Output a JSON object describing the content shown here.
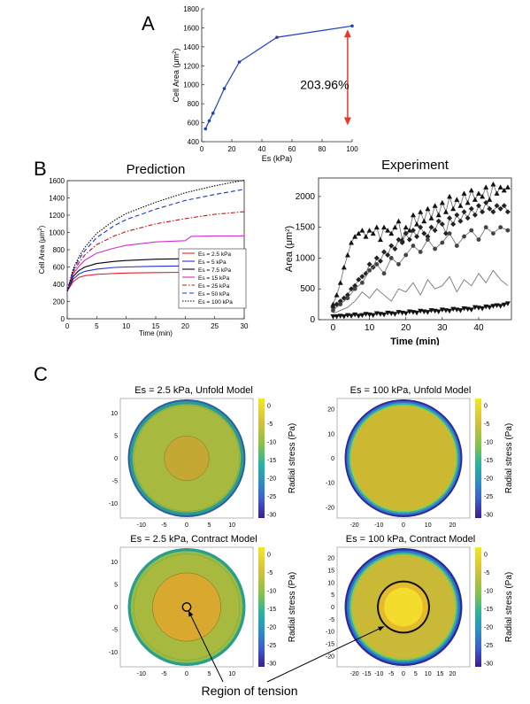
{
  "panels": {
    "a": "A",
    "b": "B",
    "c": "C"
  },
  "chart_data": [
    {
      "id": "A",
      "type": "line",
      "title": "",
      "xlabel": "Es (kPa)",
      "ylabel": "Cell Area (μm²)",
      "xlim": [
        0,
        100
      ],
      "ylim": [
        400,
        1800
      ],
      "xticks": [
        0,
        20,
        40,
        60,
        80,
        100
      ],
      "yticks": [
        400,
        600,
        800,
        1000,
        1200,
        1400,
        1600,
        1800
      ],
      "series": [
        {
          "color": "#1f3fbf",
          "x": [
            2.5,
            5,
            7.5,
            15,
            25,
            50,
            100
          ],
          "y": [
            535,
            620,
            700,
            960,
            1240,
            1500,
            1620
          ]
        }
      ],
      "annotation": {
        "text": "203.96%",
        "color": "#e8362c"
      }
    },
    {
      "id": "B-prediction",
      "type": "line",
      "title": "Prediction",
      "xlabel": "Time (min)",
      "ylabel": "Cell Area (μm²)",
      "xlim": [
        0,
        30
      ],
      "ylim": [
        0,
        1600
      ],
      "xticks": [
        0,
        5,
        10,
        15,
        20,
        25,
        30
      ],
      "yticks": [
        0,
        200,
        400,
        600,
        800,
        1000,
        1200,
        1400,
        1600
      ],
      "legend_position": "bottom-right",
      "series": [
        {
          "name": "Es = 2.5 kPa",
          "color": "#e0222a",
          "dash": "solid",
          "x": [
            0,
            1,
            2,
            3,
            5,
            8,
            10,
            15,
            20,
            25,
            30
          ],
          "y": [
            320,
            430,
            480,
            500,
            515,
            525,
            530,
            535,
            538,
            540,
            540
          ]
        },
        {
          "name": "Es = 5 kPa",
          "color": "#2233cc",
          "dash": "solid",
          "x": [
            0,
            1,
            2,
            3,
            5,
            8,
            10,
            15,
            20,
            25,
            30
          ],
          "y": [
            320,
            460,
            520,
            550,
            575,
            595,
            600,
            608,
            612,
            615,
            615
          ]
        },
        {
          "name": "Es = 7.5 kPa",
          "color": "#000000",
          "dash": "solid",
          "x": [
            0,
            1,
            2,
            3,
            5,
            8,
            10,
            15,
            20,
            25,
            30
          ],
          "y": [
            320,
            490,
            560,
            600,
            640,
            665,
            675,
            690,
            695,
            700,
            700
          ]
        },
        {
          "name": "Es = 15 kPa",
          "color": "#d22fd2",
          "dash": "solid",
          "x": [
            0,
            1,
            2,
            3,
            5,
            8,
            10,
            15,
            20,
            21,
            25,
            30
          ],
          "y": [
            320,
            520,
            610,
            680,
            760,
            820,
            850,
            890,
            905,
            955,
            960,
            960
          ]
        },
        {
          "name": "Es = 25 kPa",
          "color": "#c0141a",
          "dash": "dashdot",
          "x": [
            0,
            1,
            2,
            3,
            5,
            8,
            10,
            15,
            20,
            25,
            30
          ],
          "y": [
            320,
            540,
            650,
            740,
            860,
            960,
            1010,
            1100,
            1160,
            1210,
            1240
          ]
        },
        {
          "name": "Es = 50 kPa",
          "color": "#2233cc",
          "dash": "dashed",
          "x": [
            0,
            1,
            2,
            3,
            5,
            8,
            10,
            15,
            20,
            25,
            30
          ],
          "y": [
            320,
            560,
            690,
            790,
            940,
            1080,
            1150,
            1270,
            1370,
            1440,
            1500
          ]
        },
        {
          "name": "Es = 100 kPa",
          "color": "#000000",
          "dash": "dotted",
          "x": [
            0,
            1,
            2,
            3,
            5,
            8,
            10,
            15,
            20,
            25,
            30
          ],
          "y": [
            320,
            580,
            720,
            830,
            990,
            1140,
            1220,
            1350,
            1460,
            1540,
            1605
          ]
        }
      ]
    },
    {
      "id": "B-experiment",
      "type": "scatter",
      "title": "Experiment",
      "xlabel": "Time (min)",
      "ylabel": "Area (μm²)",
      "xlim": [
        -4,
        49
      ],
      "ylim": [
        0,
        2300
      ],
      "xticks": [
        0,
        10,
        20,
        30,
        40
      ],
      "yticks": [
        0,
        500,
        1000,
        1500,
        2000
      ],
      "series": [
        {
          "marker": "triangle-up",
          "x": [
            0,
            1,
            2,
            3,
            4,
            5,
            6,
            7,
            8,
            9,
            10,
            11,
            12,
            13,
            14,
            15,
            16,
            17,
            18,
            19,
            20,
            21,
            22,
            23,
            24,
            25,
            26,
            27,
            28,
            29,
            30,
            31,
            32,
            33,
            34,
            35,
            36,
            37,
            38,
            39,
            40,
            41,
            42,
            43,
            44,
            45,
            46,
            47,
            48
          ],
          "y": [
            250,
            400,
            600,
            850,
            1050,
            1250,
            1350,
            1400,
            1450,
            1350,
            1450,
            1400,
            1500,
            1300,
            1500,
            1450,
            1400,
            1500,
            1600,
            1300,
            1500,
            1450,
            1700,
            1550,
            1750,
            1600,
            1800,
            1650,
            1850,
            1700,
            1900,
            1750,
            2000,
            1800,
            1950,
            1850,
            2050,
            1900,
            2100,
            1950,
            2050,
            2000,
            2150,
            1950,
            2200,
            2050,
            2150,
            2100,
            2150
          ]
        },
        {
          "marker": "diamond",
          "x": [
            0,
            1,
            2,
            3,
            4,
            5,
            6,
            7,
            8,
            9,
            10,
            11,
            12,
            13,
            14,
            15,
            16,
            17,
            18,
            19,
            20,
            21,
            22,
            23,
            24,
            25,
            26,
            27,
            28,
            29,
            30,
            31,
            32,
            33,
            34,
            35,
            36,
            37,
            38,
            39,
            40,
            41,
            42,
            43,
            44,
            45,
            46,
            47,
            48
          ],
          "y": [
            200,
            250,
            300,
            350,
            400,
            500,
            550,
            650,
            700,
            750,
            900,
            850,
            1000,
            950,
            1100,
            1050,
            1200,
            1150,
            1300,
            1250,
            1400,
            1300,
            1450,
            1350,
            1500,
            1400,
            1350,
            1500,
            1450,
            1600,
            1550,
            1400,
            1650,
            1550,
            1700,
            1600,
            1750,
            1650,
            1800,
            1700,
            1850,
            1750,
            1900,
            1800,
            1750,
            1850,
            1800,
            1850,
            1750
          ]
        },
        {
          "marker": "circle",
          "x": [
            0,
            2,
            4,
            6,
            8,
            10,
            12,
            14,
            16,
            18,
            20,
            22,
            24,
            26,
            28,
            30,
            32,
            34,
            36,
            38,
            40,
            42,
            44,
            46,
            48
          ],
          "y": [
            150,
            250,
            350,
            500,
            600,
            800,
            900,
            750,
            1000,
            900,
            1050,
            1200,
            1100,
            1300,
            1150,
            1250,
            1400,
            1200,
            1350,
            1450,
            1300,
            1500,
            1400,
            1500,
            1450
          ]
        },
        {
          "marker": "line",
          "x": [
            0,
            2,
            4,
            6,
            8,
            10,
            12,
            14,
            16,
            18,
            20,
            22,
            24,
            26,
            28,
            30,
            32,
            34,
            36,
            38,
            40,
            42,
            44,
            46,
            48
          ],
          "y": [
            100,
            150,
            200,
            300,
            450,
            350,
            500,
            400,
            300,
            500,
            450,
            600,
            400,
            650,
            500,
            550,
            700,
            450,
            650,
            550,
            750,
            600,
            800,
            650,
            550
          ]
        },
        {
          "marker": "triangle-down",
          "x": [
            0,
            1,
            2,
            3,
            4,
            5,
            6,
            7,
            8,
            9,
            10,
            11,
            12,
            13,
            14,
            15,
            16,
            17,
            18,
            19,
            20,
            21,
            22,
            23,
            24,
            25,
            26,
            27,
            28,
            29,
            30,
            31,
            32,
            33,
            34,
            35,
            36,
            37,
            38,
            39,
            40,
            41,
            42,
            43,
            44,
            45,
            46,
            47,
            48
          ],
          "y": [
            50,
            50,
            60,
            50,
            70,
            60,
            80,
            60,
            70,
            90,
            80,
            70,
            100,
            90,
            80,
            110,
            100,
            90,
            120,
            110,
            100,
            130,
            120,
            110,
            140,
            130,
            120,
            150,
            140,
            130,
            160,
            150,
            140,
            170,
            160,
            150,
            180,
            170,
            160,
            200,
            190,
            180,
            210,
            200,
            220,
            230,
            220,
            240,
            260
          ]
        }
      ]
    },
    {
      "id": "C1",
      "type": "heatmap",
      "title": "Es = 2.5 kPa, Unfold Model",
      "ticks": [
        -10,
        -5,
        0,
        5,
        10
      ],
      "colorbar_label": "Radial stress (Pa)",
      "colorbar_ticks": [
        0,
        -5,
        -10,
        -15,
        -20,
        -25,
        -30
      ]
    },
    {
      "id": "C2",
      "type": "heatmap",
      "title": "Es = 100  kPa, Unfold Model",
      "ticks": [
        -20,
        -10,
        0,
        10,
        20
      ],
      "colorbar_label": "Radial stress (Pa)",
      "colorbar_ticks": [
        0,
        -5,
        -10,
        -15,
        -20,
        -25,
        -30
      ]
    },
    {
      "id": "C3",
      "type": "heatmap",
      "title": "Es = 2.5 kPa, Contract Model",
      "ticks": [
        -10,
        -5,
        0,
        5,
        10
      ],
      "colorbar_label": "Radial stress (Pa)",
      "colorbar_ticks": [
        0,
        -5,
        -10,
        -15,
        -20,
        -25,
        -30
      ]
    },
    {
      "id": "C4",
      "type": "heatmap",
      "title": "Es = 100 kPa, Contract Model",
      "ticks": [
        -20,
        -15,
        -10,
        -5,
        0,
        5,
        10,
        15,
        20
      ],
      "colorbar_label": "Radial stress (Pa)",
      "colorbar_ticks": [
        0,
        -5,
        -10,
        -15,
        -20,
        -25,
        -30
      ],
      "annotation": "Region of tension"
    }
  ]
}
